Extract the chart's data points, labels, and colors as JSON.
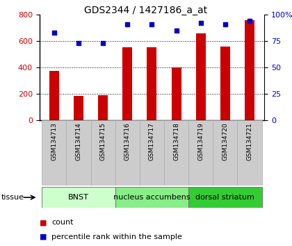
{
  "title": "GDS2344 / 1427186_a_at",
  "samples": [
    "GSM134713",
    "GSM134714",
    "GSM134715",
    "GSM134716",
    "GSM134717",
    "GSM134718",
    "GSM134719",
    "GSM134720",
    "GSM134721"
  ],
  "counts": [
    375,
    185,
    190,
    555,
    555,
    400,
    660,
    560,
    760
  ],
  "percentiles": [
    83,
    73,
    73,
    91,
    91,
    85,
    92,
    91,
    94
  ],
  "bar_color": "#cc0000",
  "dot_color": "#0000cc",
  "left_ylim": [
    0,
    800
  ],
  "right_ylim": [
    0,
    100
  ],
  "left_yticks": [
    0,
    200,
    400,
    600,
    800
  ],
  "right_yticks": [
    0,
    25,
    50,
    75,
    100
  ],
  "right_yticklabels": [
    "0",
    "25",
    "50",
    "75",
    "100%"
  ],
  "tissue_groups": [
    {
      "label": "BNST",
      "start": 0,
      "end": 3,
      "color": "#ccffcc"
    },
    {
      "label": "nucleus accumbens",
      "start": 3,
      "end": 6,
      "color": "#88ee88"
    },
    {
      "label": "dorsal striatum",
      "start": 6,
      "end": 9,
      "color": "#33cc33"
    }
  ],
  "tissue_label": "tissue",
  "legend_count": "count",
  "legend_percentile": "percentile rank within the sample",
  "grid_color": "#000000",
  "background_color": "#ffffff",
  "tick_label_color_left": "#cc0000",
  "tick_label_color_right": "#0000cc",
  "bar_width": 0.4,
  "label_fontsize": 6.5,
  "tissue_fontsize": 8,
  "legend_fontsize": 8
}
